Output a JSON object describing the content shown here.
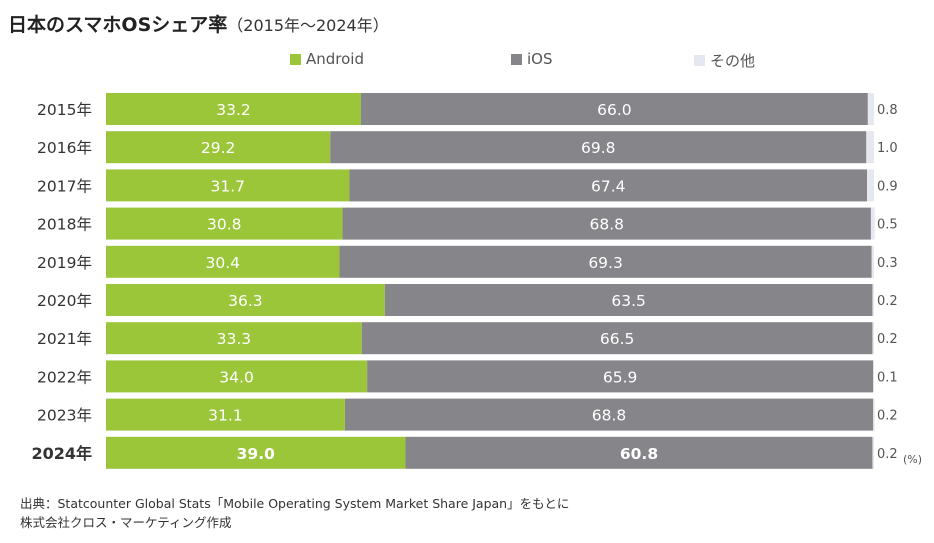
{
  "title": "日本のスマホOSシェア率",
  "subtitle": "（2015年～2024年）",
  "unit_label": "(%)",
  "source_lines": [
    "出典：Statcounter Global Stats「Mobile Operating System Market Share Japan」をもとに",
    "株式会社クロス・マーケティング作成"
  ],
  "colors": {
    "android": "#9bc63a",
    "ios": "#86858a",
    "other": "#e6e8ef",
    "bar_text": "#ffffff",
    "other_text": "#555555"
  },
  "chart_data": {
    "type": "bar",
    "orientation": "horizontal",
    "stacked": true,
    "categories": [
      "2015年",
      "2016年",
      "2017年",
      "2018年",
      "2019年",
      "2020年",
      "2021年",
      "2022年",
      "2023年",
      "2024年"
    ],
    "highlighted_category": "2024年",
    "series": [
      {
        "name": "Android",
        "values": [
          33.2,
          29.2,
          31.7,
          30.8,
          30.4,
          36.3,
          33.3,
          34.0,
          31.1,
          39.0
        ]
      },
      {
        "name": "iOS",
        "values": [
          66.0,
          69.8,
          67.4,
          68.8,
          69.3,
          63.5,
          66.5,
          65.9,
          68.8,
          60.8
        ]
      },
      {
        "name": "その他",
        "values": [
          0.8,
          1.0,
          0.9,
          0.5,
          0.3,
          0.2,
          0.2,
          0.1,
          0.2,
          0.2
        ]
      }
    ],
    "value_labels": [
      [
        "33.2",
        "29.2",
        "31.7",
        "30.8",
        "30.4",
        "36.3",
        "33.3",
        "34.0",
        "31.1",
        "39.0"
      ],
      [
        "66.0",
        "69.8",
        "67.4",
        "68.8",
        "69.3",
        "63.5",
        "66.5",
        "65.9",
        "68.8",
        "60.8"
      ],
      [
        "0.8",
        "1.0",
        "0.9",
        "0.5",
        "0.3",
        "0.2",
        "0.2",
        "0.1",
        "0.2",
        "0.2"
      ]
    ],
    "xlim": [
      0,
      100
    ],
    "legend_position": "top",
    "grid": false
  }
}
